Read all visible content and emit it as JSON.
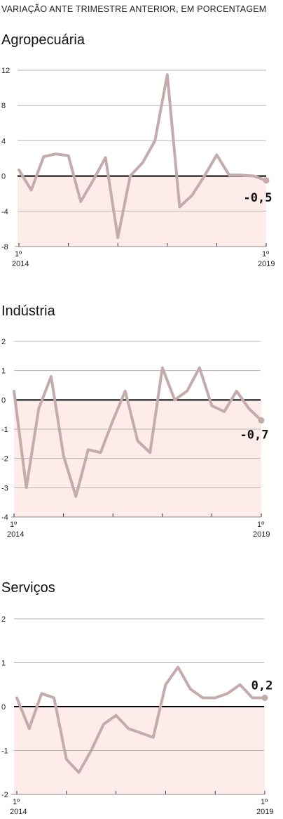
{
  "subtitle": "VARIAÇÃO ANTE TRIMESTRE ANTERIOR, EM PORCENTAGEM",
  "colors": {
    "line": "#c4acac",
    "negative_fill": "#fdecea",
    "grid": "#b5b5b5",
    "zero_line": "#000000"
  },
  "chart_data": [
    {
      "type": "line",
      "title": "Agropecuária",
      "x_start_label": [
        "1º",
        "2014"
      ],
      "x_end_label": [
        "1º",
        "2019"
      ],
      "yticks": [
        12,
        8,
        4,
        0,
        -4,
        -8
      ],
      "ylim": [
        -8,
        12
      ],
      "end_label": "-0,5",
      "series": [
        {
          "values": [
            0.7,
            -1.6,
            2.2,
            2.5,
            2.3,
            -2.9,
            -0.5,
            2.1,
            -7.0,
            0.0,
            1.5,
            4.0,
            11.5,
            -3.5,
            -2.2,
            0.0,
            2.4,
            0.1,
            0.1,
            0.0,
            -0.5
          ]
        }
      ]
    },
    {
      "type": "line",
      "title": "Indústria",
      "x_start_label": [
        "1º",
        "2014"
      ],
      "x_end_label": [
        "1º",
        "2019"
      ],
      "yticks": [
        2,
        1,
        0,
        -1,
        -2,
        -3,
        -4
      ],
      "ylim": [
        -4,
        2
      ],
      "end_label": "-0,7",
      "series": [
        {
          "values": [
            0.3,
            -3.0,
            -0.3,
            0.8,
            -1.9,
            -3.3,
            -1.7,
            -1.8,
            -0.7,
            0.3,
            -1.4,
            -1.8,
            1.1,
            0.0,
            0.3,
            1.1,
            -0.2,
            -0.4,
            0.3,
            -0.3,
            -0.7
          ]
        }
      ]
    },
    {
      "type": "line",
      "title": "Serviços",
      "x_start_label": [
        "1º",
        "2014"
      ],
      "x_end_label": [
        "1º",
        "2019"
      ],
      "yticks": [
        2,
        1,
        0,
        -1,
        -2
      ],
      "ylim": [
        -2,
        2
      ],
      "end_label": "0,2",
      "series": [
        {
          "values": [
            0.2,
            -0.5,
            0.3,
            0.2,
            -1.2,
            -1.5,
            -1.0,
            -0.4,
            -0.2,
            -0.5,
            -0.6,
            -0.7,
            0.5,
            0.9,
            0.4,
            0.2,
            0.2,
            0.3,
            0.5,
            0.2,
            0.2
          ]
        }
      ]
    }
  ]
}
